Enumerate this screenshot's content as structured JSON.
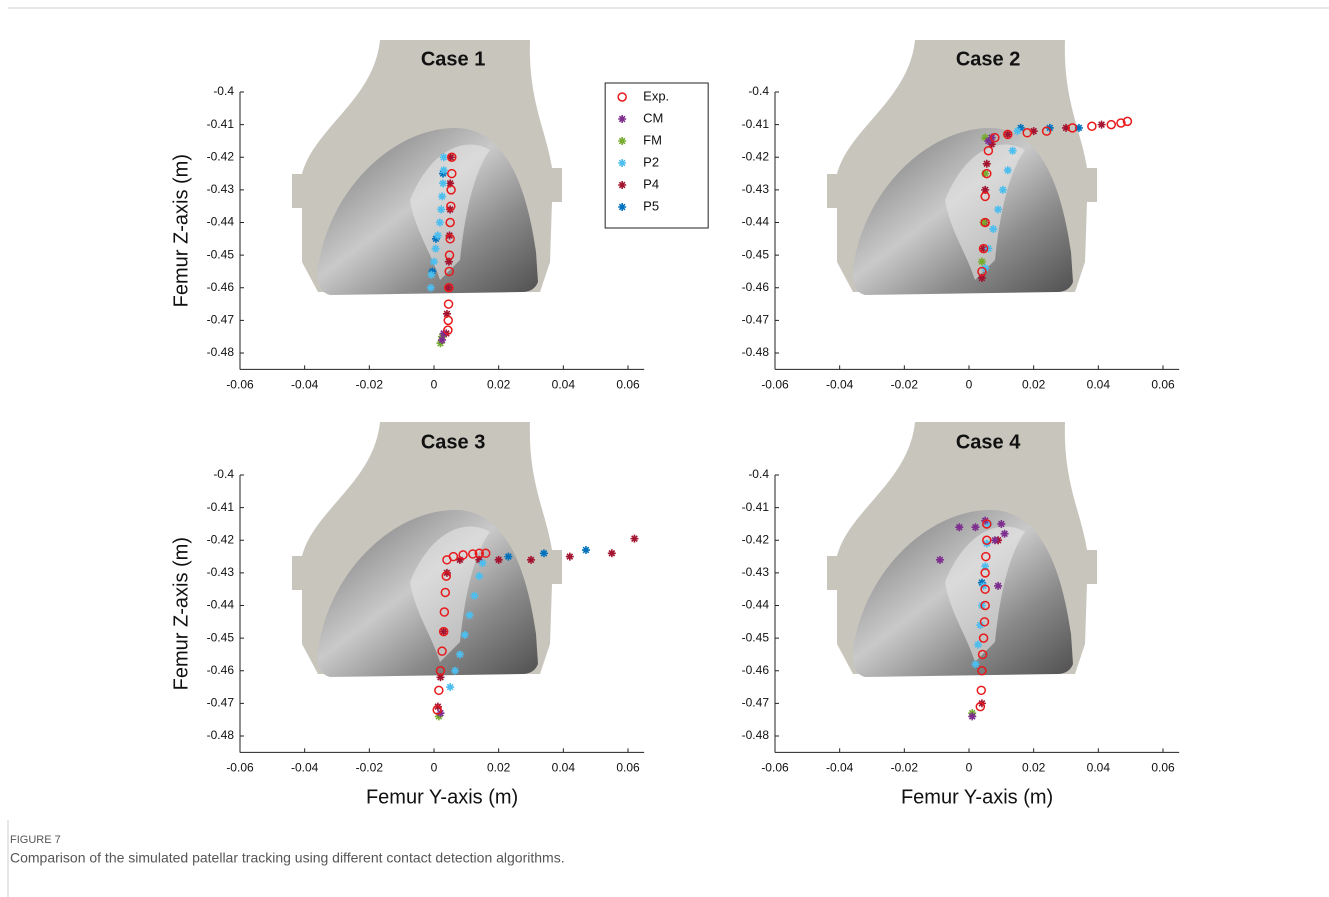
{
  "figure": {
    "label": "FIGURE 7",
    "caption": "Comparison of the simulated patellar tracking using different contact detection algorithms."
  },
  "chart_data": [
    {
      "type": "scatter",
      "title": "Case 1",
      "ylabel": "Femur Z-axis (m)",
      "legend": "upper right",
      "xlim": [
        -0.06,
        0.065
      ],
      "ylim": [
        -0.485,
        -0.4
      ],
      "xticks": [
        -0.06,
        -0.04,
        -0.02,
        0,
        0.02,
        0.04,
        0.06
      ],
      "yticks": [
        -0.4,
        -0.41,
        -0.42,
        -0.43,
        -0.44,
        -0.45,
        -0.46,
        -0.47,
        -0.48
      ],
      "series": [
        {
          "name": "Exp.",
          "color": "#e8191b",
          "marker": "o",
          "x": [
            0.0055,
            0.0055,
            0.0053,
            0.0052,
            0.005,
            0.005,
            0.0048,
            0.0047,
            0.0046,
            0.0045,
            0.0044,
            0.0043
          ],
          "values": [
            -0.42,
            -0.425,
            -0.43,
            -0.435,
            -0.44,
            -0.445,
            -0.45,
            -0.455,
            -0.46,
            -0.465,
            -0.47,
            -0.473
          ]
        },
        {
          "name": "CM",
          "color": "#7e2f8e",
          "marker": "*",
          "x": [
            0.003,
            0.0025
          ],
          "values": [
            -0.474,
            -0.476
          ]
        },
        {
          "name": "FM",
          "color": "#77ac30",
          "marker": "*",
          "x": [
            0.0025,
            0.002
          ],
          "values": [
            -0.475,
            -0.477
          ]
        },
        {
          "name": "P2",
          "color": "#4dbeee",
          "marker": "*",
          "x": [
            0.003,
            0.003,
            0.0028,
            0.0025,
            0.0022,
            0.0018,
            0.0012,
            0.0005,
            0.0,
            -0.0008,
            -0.001
          ],
          "values": [
            -0.42,
            -0.424,
            -0.428,
            -0.432,
            -0.436,
            -0.44,
            -0.444,
            -0.448,
            -0.452,
            -0.456,
            -0.46
          ]
        },
        {
          "name": "P4",
          "color": "#a2142f",
          "marker": "*",
          "x": [
            0.0052,
            0.005,
            0.005,
            0.0048,
            0.0046,
            0.0044,
            0.004,
            0.0038
          ],
          "values": [
            -0.42,
            -0.428,
            -0.436,
            -0.444,
            -0.452,
            -0.46,
            -0.468,
            -0.474
          ]
        },
        {
          "name": "P5",
          "color": "#0072bd",
          "marker": "*",
          "x": [
            0.0028,
            0.0006,
            -0.0005
          ],
          "values": [
            -0.425,
            -0.445,
            -0.455
          ]
        }
      ]
    },
    {
      "type": "scatter",
      "title": "Case 2",
      "xlim": [
        -0.06,
        0.065
      ],
      "ylim": [
        -0.485,
        -0.4
      ],
      "xticks": [
        -0.06,
        -0.04,
        -0.02,
        0,
        0.02,
        0.04,
        0.06
      ],
      "yticks": [
        -0.4,
        -0.41,
        -0.42,
        -0.43,
        -0.44,
        -0.45,
        -0.46,
        -0.47,
        -0.48
      ],
      "series": [
        {
          "color": "#e8191b",
          "marker": "o",
          "x": [
            0.004,
            0.0045,
            0.005,
            0.005,
            0.0055,
            0.006,
            0.008,
            0.012,
            0.018,
            0.024,
            0.032,
            0.038,
            0.044,
            0.047,
            0.049
          ],
          "values": [
            -0.455,
            -0.448,
            -0.44,
            -0.432,
            -0.425,
            -0.418,
            -0.414,
            -0.413,
            -0.4125,
            -0.412,
            -0.411,
            -0.4105,
            -0.41,
            -0.4095,
            -0.409
          ]
        },
        {
          "color": "#7e2f8e",
          "marker": "*",
          "x": [
            0.006,
            0.007
          ],
          "values": [
            -0.415,
            -0.414
          ]
        },
        {
          "color": "#77ac30",
          "marker": "*",
          "x": [
            0.005,
            0.005,
            0.0045,
            0.004
          ],
          "values": [
            -0.414,
            -0.425,
            -0.44,
            -0.452
          ]
        },
        {
          "color": "#4dbeee",
          "marker": "*",
          "x": [
            0.005,
            0.006,
            0.0075,
            0.009,
            0.0105,
            0.012,
            0.0135,
            0.015
          ],
          "values": [
            -0.454,
            -0.448,
            -0.442,
            -0.436,
            -0.43,
            -0.424,
            -0.418,
            -0.412
          ]
        },
        {
          "color": "#a2142f",
          "marker": "*",
          "x": [
            0.004,
            0.0045,
            0.0048,
            0.005,
            0.0055,
            0.007,
            0.012,
            0.02,
            0.03,
            0.041
          ],
          "values": [
            -0.457,
            -0.448,
            -0.44,
            -0.43,
            -0.422,
            -0.416,
            -0.413,
            -0.412,
            -0.411,
            -0.41
          ]
        },
        {
          "color": "#0072bd",
          "marker": "*",
          "x": [
            0.016,
            0.025,
            0.034
          ],
          "values": [
            -0.411,
            -0.411,
            -0.411
          ]
        }
      ]
    },
    {
      "type": "scatter",
      "title": "Case 3",
      "ylabel": "Femur Z-axis (m)",
      "xlabel": "Femur Y-axis (m)",
      "xlim": [
        -0.06,
        0.065
      ],
      "ylim": [
        -0.485,
        -0.4
      ],
      "xticks": [
        -0.06,
        -0.04,
        -0.02,
        0,
        0.02,
        0.04,
        0.06
      ],
      "yticks": [
        -0.4,
        -0.41,
        -0.42,
        -0.43,
        -0.44,
        -0.45,
        -0.46,
        -0.47,
        -0.48
      ],
      "series": [
        {
          "color": "#e8191b",
          "marker": "o",
          "x": [
            0.001,
            0.0015,
            0.002,
            0.0025,
            0.003,
            0.0032,
            0.0035,
            0.0038,
            0.004,
            0.006,
            0.009,
            0.012,
            0.014,
            0.016
          ],
          "values": [
            -0.472,
            -0.466,
            -0.46,
            -0.454,
            -0.448,
            -0.442,
            -0.436,
            -0.431,
            -0.426,
            -0.425,
            -0.4245,
            -0.4242,
            -0.424,
            -0.424
          ]
        },
        {
          "color": "#7e2f8e",
          "marker": "*",
          "x": [
            0.002
          ],
          "values": [
            -0.473
          ]
        },
        {
          "color": "#77ac30",
          "marker": "*",
          "x": [
            0.0015
          ],
          "values": [
            -0.474
          ]
        },
        {
          "color": "#4dbeee",
          "marker": "*",
          "x": [
            0.005,
            0.0065,
            0.008,
            0.0095,
            0.011,
            0.0125,
            0.014,
            0.015
          ],
          "values": [
            -0.465,
            -0.46,
            -0.455,
            -0.449,
            -0.443,
            -0.437,
            -0.431,
            -0.427
          ]
        },
        {
          "color": "#a2142f",
          "marker": "*",
          "x": [
            0.0012,
            0.002,
            0.003,
            0.004,
            0.008,
            0.014,
            0.02,
            0.03,
            0.042,
            0.055,
            0.062
          ],
          "values": [
            -0.471,
            -0.462,
            -0.448,
            -0.43,
            -0.426,
            -0.426,
            -0.426,
            -0.426,
            -0.425,
            -0.424,
            -0.4195
          ]
        },
        {
          "color": "#0072bd",
          "marker": "*",
          "x": [
            0.023,
            0.034,
            0.047
          ],
          "values": [
            -0.425,
            -0.424,
            -0.423
          ]
        }
      ]
    },
    {
      "type": "scatter",
      "title": "Case 4",
      "xlabel": "Femur Y-axis (m)",
      "xlim": [
        -0.06,
        0.065
      ],
      "ylim": [
        -0.485,
        -0.4
      ],
      "xticks": [
        -0.06,
        -0.04,
        -0.02,
        0,
        0.02,
        0.04,
        0.06
      ],
      "yticks": [
        -0.4,
        -0.41,
        -0.42,
        -0.43,
        -0.44,
        -0.45,
        -0.46,
        -0.47,
        -0.48
      ],
      "series": [
        {
          "color": "#e8191b",
          "marker": "o",
          "x": [
            0.0035,
            0.0038,
            0.004,
            0.0042,
            0.0045,
            0.0048,
            0.005,
            0.005,
            0.005,
            0.0052,
            0.0055,
            0.0055
          ],
          "values": [
            -0.471,
            -0.466,
            -0.46,
            -0.455,
            -0.45,
            -0.445,
            -0.44,
            -0.435,
            -0.43,
            -0.425,
            -0.42,
            -0.415
          ]
        },
        {
          "color": "#7e2f8e",
          "marker": "*",
          "x": [
            -0.009,
            -0.003,
            0.002,
            0.005,
            0.008,
            0.01,
            0.011,
            0.009,
            0.001
          ],
          "values": [
            -0.426,
            -0.416,
            -0.416,
            -0.414,
            -0.42,
            -0.415,
            -0.418,
            -0.434,
            -0.474
          ]
        },
        {
          "color": "#77ac30",
          "marker": "*",
          "x": [
            0.001
          ],
          "values": [
            -0.473
          ]
        },
        {
          "color": "#4dbeee",
          "marker": "*",
          "x": [
            0.002,
            0.0028,
            0.0035,
            0.004,
            0.0045,
            0.005,
            0.0055,
            0.006
          ],
          "values": [
            -0.458,
            -0.452,
            -0.446,
            -0.44,
            -0.434,
            -0.428,
            -0.421,
            -0.415
          ]
        },
        {
          "color": "#a2142f",
          "marker": "*",
          "x": [
            0.009,
            0.004
          ],
          "values": [
            -0.42,
            -0.47
          ]
        },
        {
          "color": "#0072bd",
          "marker": "*",
          "x": [
            0.004
          ],
          "values": [
            -0.433
          ]
        }
      ]
    }
  ]
}
